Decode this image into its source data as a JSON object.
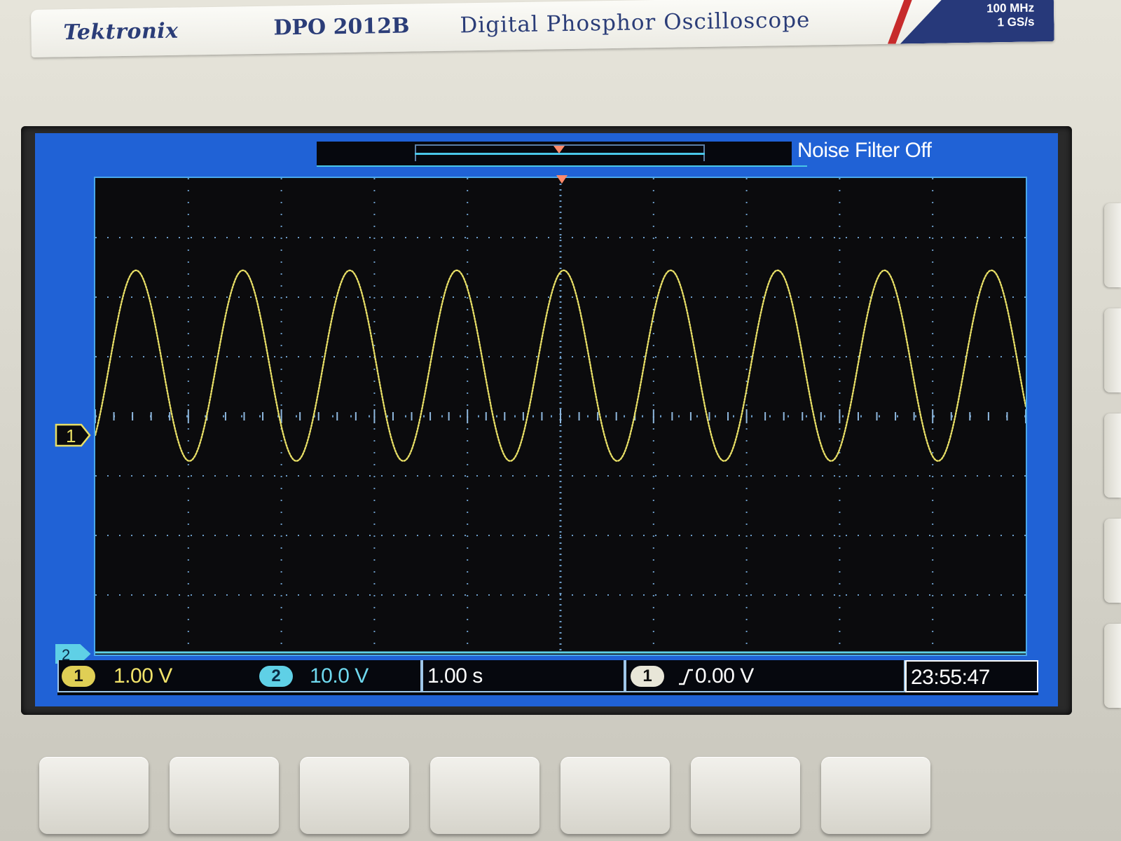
{
  "header": {
    "brand": "Tektronix",
    "model": "DPO 2012B",
    "description": "Digital Phosphor Oscilloscope",
    "bandwidth": "100 MHz",
    "sample_rate": "1 GS/s"
  },
  "status": {
    "noise_filter": "Noise Filter Off"
  },
  "markers": {
    "ch1": "1",
    "ch2": "2"
  },
  "readouts": {
    "ch1_badge": "1",
    "ch1_scale": "1.00 V",
    "ch2_badge": "2",
    "ch2_scale": "10.0 V",
    "timebase": "1.00 s",
    "trigger_badge": "1",
    "trigger_level": "0.00 V",
    "clock": "23:55:47"
  },
  "colors": {
    "ch1": "#e8df66",
    "ch2": "#5fd0e6",
    "screen_bg": "#2062d6",
    "plot_bg": "#0b0b0d",
    "brand_blue": "#2b3d78"
  },
  "chart_data": {
    "type": "line",
    "xlabel": "",
    "ylabel": "",
    "xlim": [
      -5,
      5
    ],
    "ylim": [
      -4,
      4
    ],
    "grid": true,
    "series": [
      {
        "waveform": "sine",
        "cycles_visible": 8.7,
        "offset_divisions": 0.85,
        "amplitude_divisions": 1.6,
        "phase_start_fraction": 0.12
      }
    ]
  }
}
